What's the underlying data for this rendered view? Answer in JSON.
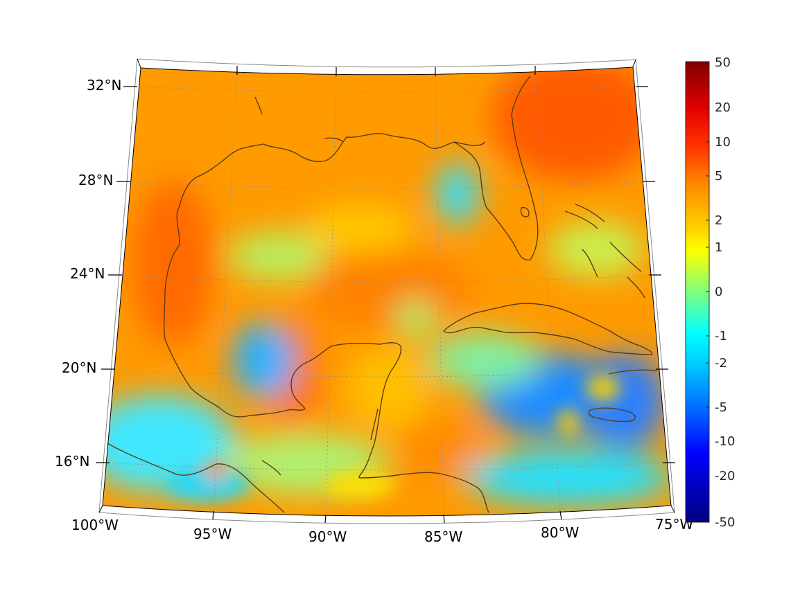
{
  "map": {
    "latitude_labels": [
      "32°N",
      "28°N",
      "24°N",
      "20°N",
      "16°N"
    ],
    "longitude_labels": [
      "100°W",
      "95°W",
      "90°W",
      "85°W",
      "80°W",
      "75°W"
    ],
    "colors": {
      "coastline": "#5a3d14",
      "gridline": "#8c8c8c",
      "frame": "#000000"
    }
  },
  "colorbar": {
    "tick_labels": [
      "50",
      "20",
      "10",
      "5",
      "2",
      "1",
      "0",
      "-1",
      "-2",
      "-5",
      "-10",
      "-20",
      "-50"
    ],
    "colors": [
      "#7f0000",
      "#ff0000",
      "#ff7f00",
      "#ffff00",
      "#7fff7f",
      "#00ffff",
      "#007fff",
      "#0000ff",
      "#00007f"
    ]
  }
}
